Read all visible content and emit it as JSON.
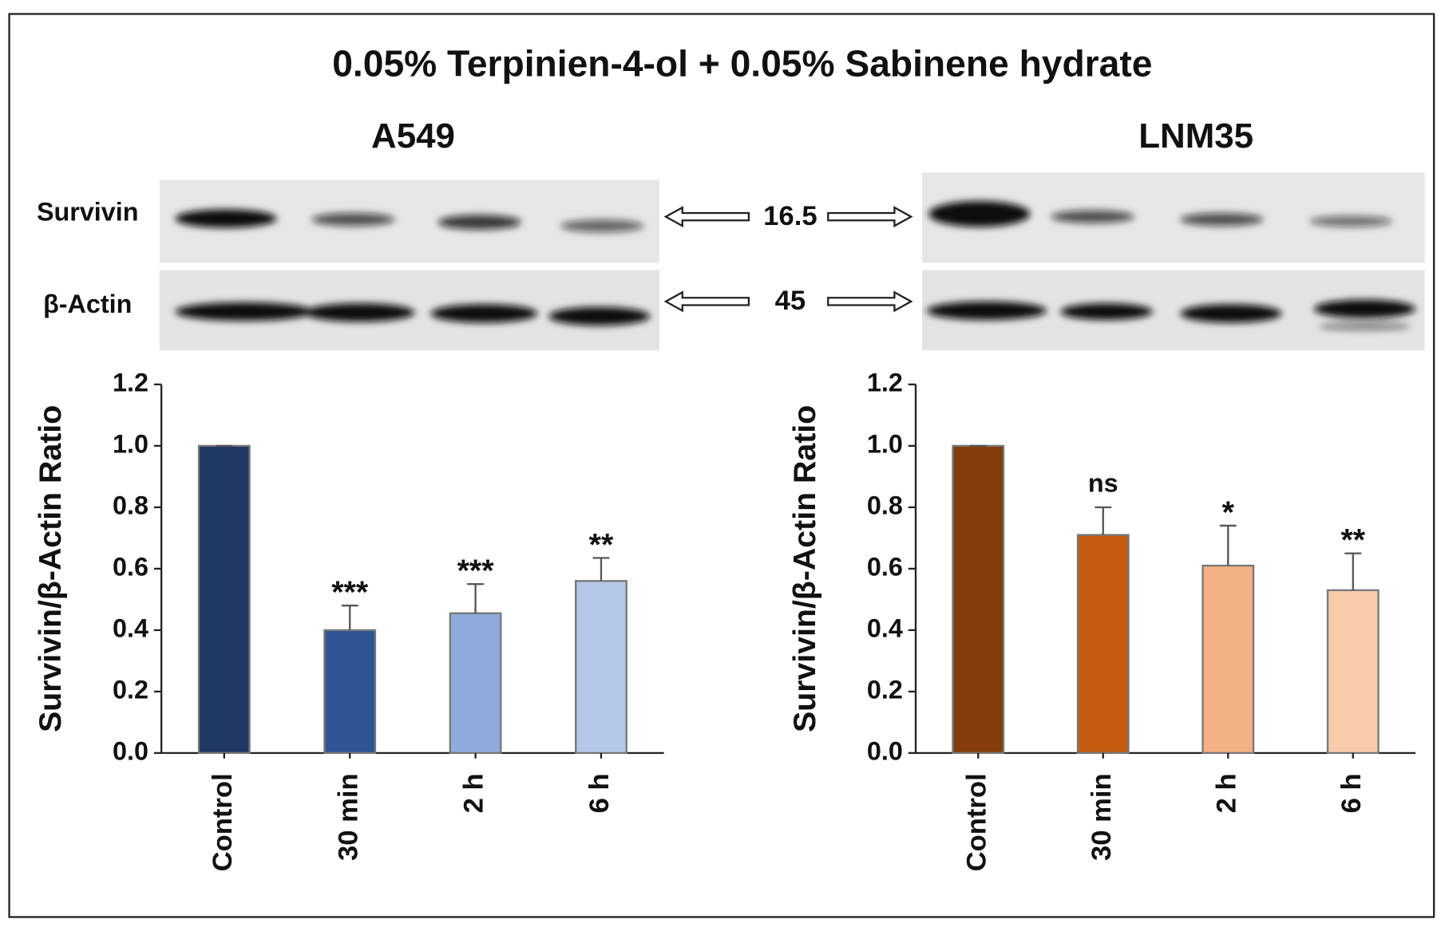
{
  "title": "0.05%  Terpinien-4-ol + 0.05%  Sabinene hydrate",
  "blot": {
    "rows": [
      {
        "label": "Survivin",
        "kda": 16.5
      },
      {
        "label": "β-Actin",
        "kda": 45
      }
    ]
  },
  "chart_data": [
    {
      "type": "bar",
      "title": "A549",
      "y_label": "Survivin/β-Actin Ratio",
      "categories": [
        "Control",
        "30 min",
        "2 h",
        "6 h"
      ],
      "values": [
        1.0,
        0.4,
        0.455,
        0.56
      ],
      "errors": [
        0,
        0.08,
        0.095,
        0.075
      ],
      "annotations": [
        null,
        "***",
        "***",
        "**"
      ],
      "colors": [
        "#1f3864",
        "#2f5597",
        "#8faadc",
        "#b4c7e7"
      ],
      "ylim": [
        0,
        1.2
      ],
      "yticks": [
        {
          "value": 0,
          "label": "0.0"
        },
        0.2,
        0.4,
        0.6,
        0.8,
        {
          "value": 1,
          "label": "1.0"
        },
        1.2
      ]
    },
    {
      "type": "bar",
      "title": "LNM35",
      "y_label": "Survivin/β-Actin Ratio",
      "categories": [
        "Control",
        "30 min",
        "2 h",
        "6 h"
      ],
      "values": [
        1.0,
        0.71,
        0.61,
        0.53
      ],
      "errors": [
        0,
        0.09,
        0.13,
        0.12
      ],
      "annotations": [
        null,
        "ns",
        "*",
        "**"
      ],
      "colors": [
        "#843c0c",
        "#c55a11",
        "#f4b183",
        "#f8cbad"
      ],
      "ylim": [
        0,
        1.2
      ],
      "yticks": [
        {
          "value": 0,
          "label": "0.0"
        },
        0.2,
        0.4,
        0.6,
        0.8,
        {
          "value": 1,
          "label": "1.0"
        },
        1.2
      ]
    }
  ]
}
